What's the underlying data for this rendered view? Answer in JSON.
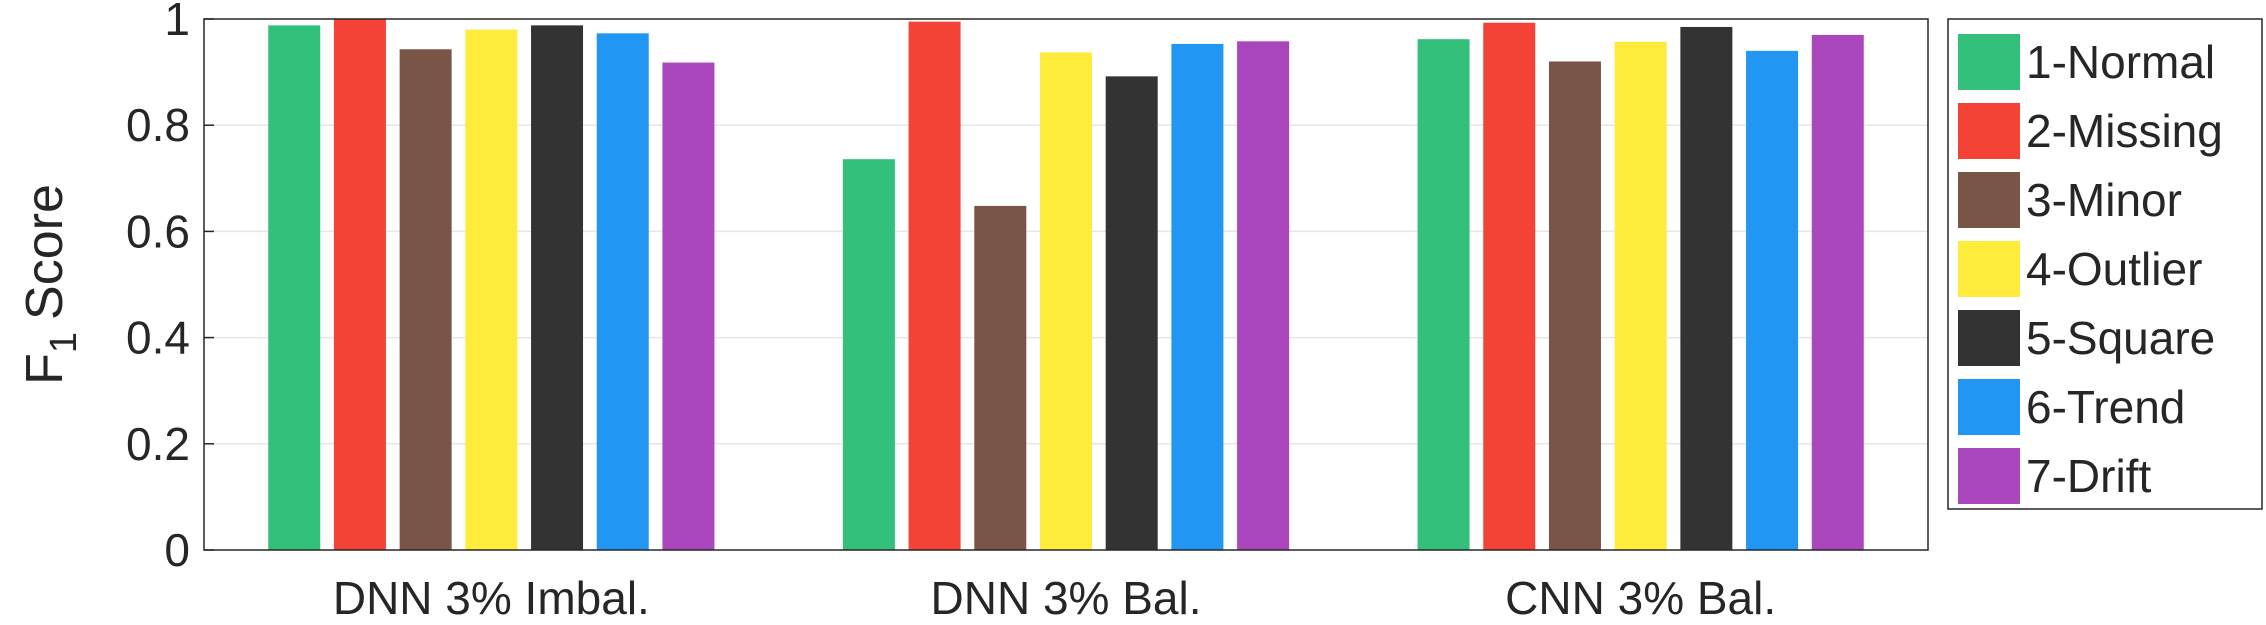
{
  "chart_data": {
    "type": "bar",
    "ylabel_main": "F",
    "ylabel_sub": "1",
    "ylabel_tail": "Score",
    "ylim": [
      0,
      1
    ],
    "yticks": [
      "0",
      "0.2",
      "0.4",
      "0.6",
      "0.8",
      "1"
    ],
    "grid": true,
    "legend_position": "right",
    "categories": [
      "DNN 3% Imbal.",
      "DNN 3% Bal.",
      "CNN 3% Bal."
    ],
    "series": [
      {
        "name": "1-Normal",
        "color": "#33c07a",
        "values": [
          0.988,
          0.736,
          0.962
        ]
      },
      {
        "name": "2-Missing",
        "color": "#f44336",
        "values": [
          1.0,
          0.995,
          0.993
        ]
      },
      {
        "name": "3-Minor",
        "color": "#795548",
        "values": [
          0.943,
          0.648,
          0.92
        ]
      },
      {
        "name": "4-Outlier",
        "color": "#ffeb3b",
        "values": [
          0.98,
          0.937,
          0.957
        ]
      },
      {
        "name": "5-Square",
        "color": "#333333",
        "values": [
          0.988,
          0.892,
          0.985
        ]
      },
      {
        "name": "6-Trend",
        "color": "#2196f3",
        "values": [
          0.973,
          0.953,
          0.94
        ]
      },
      {
        "name": "7-Drift",
        "color": "#ab47bc",
        "values": [
          0.918,
          0.958,
          0.97
        ]
      }
    ]
  }
}
